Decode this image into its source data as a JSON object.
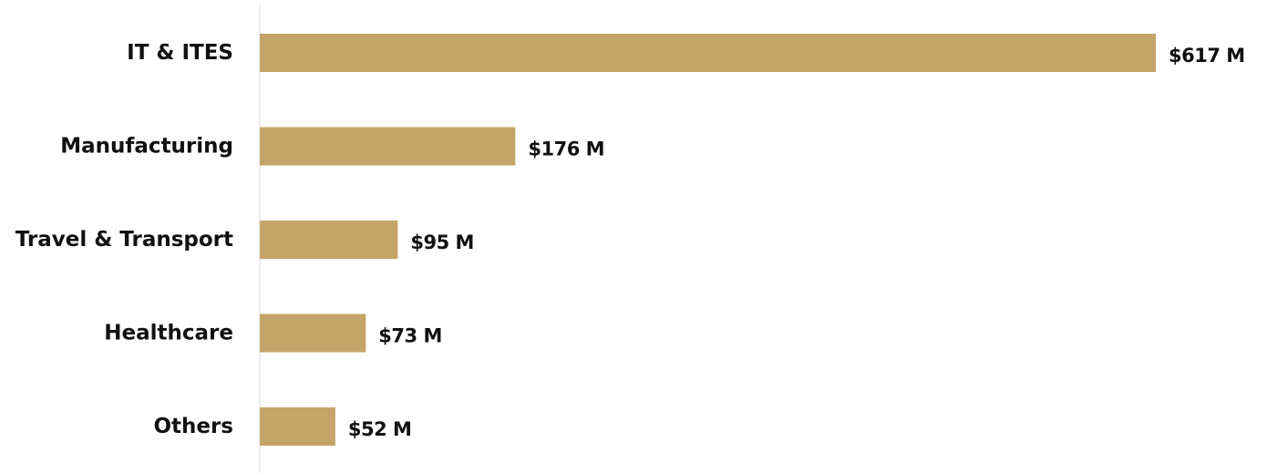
{
  "chart_data": {
    "type": "bar",
    "orientation": "horizontal",
    "categories": [
      "IT & ITES",
      "Manufacturing",
      "Travel & Transport",
      "Healthcare",
      "Others"
    ],
    "values": [
      617,
      176,
      95,
      73,
      52
    ],
    "value_labels": [
      "$617 M",
      "$176 M",
      "$95 M",
      "$73 M",
      "$52 M"
    ],
    "title": "",
    "xlabel": "",
    "ylabel": "",
    "grid": false,
    "legend": "none",
    "colors": {
      "bar": "#c4a468",
      "axis": "#d9d9d9",
      "text": "#111111"
    }
  }
}
